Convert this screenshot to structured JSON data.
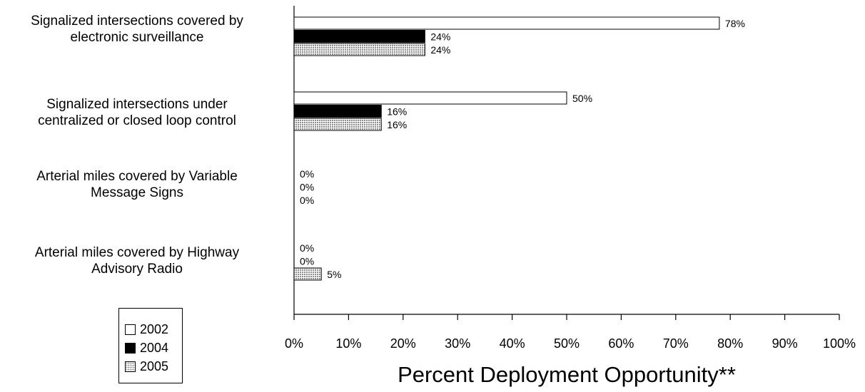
{
  "chart_data": {
    "type": "bar",
    "orientation": "horizontal",
    "categories": [
      "Signalized intersections covered by electronic surveillance",
      "Signalized intersections under centralized or closed loop control",
      "Arterial miles covered by Variable Message Signs",
      "Arterial miles covered by Highway Advisory Radio"
    ],
    "category_lines": [
      [
        "Signalized intersections covered by",
        "electronic surveillance"
      ],
      [
        "Signalized intersections under",
        "centralized or closed loop control"
      ],
      [
        "Arterial miles covered by Variable",
        "Message Signs"
      ],
      [
        "Arterial miles covered by Highway",
        "Advisory Radio"
      ]
    ],
    "series": [
      {
        "name": "2002",
        "values": [
          78,
          50,
          0,
          0
        ],
        "labels": [
          "78%",
          "50%",
          "0%",
          "0%"
        ],
        "color": "#ffffff",
        "pattern": "none"
      },
      {
        "name": "2004",
        "values": [
          24,
          16,
          0,
          0
        ],
        "labels": [
          "24%",
          "16%",
          "0%",
          "0%"
        ],
        "color": "#000000",
        "pattern": "none"
      },
      {
        "name": "2005",
        "values": [
          24,
          16,
          0,
          5
        ],
        "labels": [
          "24%",
          "16%",
          "0%",
          "5%"
        ],
        "color": "#c8c8c8",
        "pattern": "dots"
      }
    ],
    "x_ticks": [
      "0%",
      "10%",
      "20%",
      "30%",
      "40%",
      "50%",
      "60%",
      "70%",
      "80%",
      "90%",
      "100%"
    ],
    "xlim": [
      0,
      100
    ],
    "xlabel": "Percent Deployment Opportunity**",
    "ylabel": "",
    "title": "",
    "grid": false,
    "legend_position": "bottom-left"
  }
}
